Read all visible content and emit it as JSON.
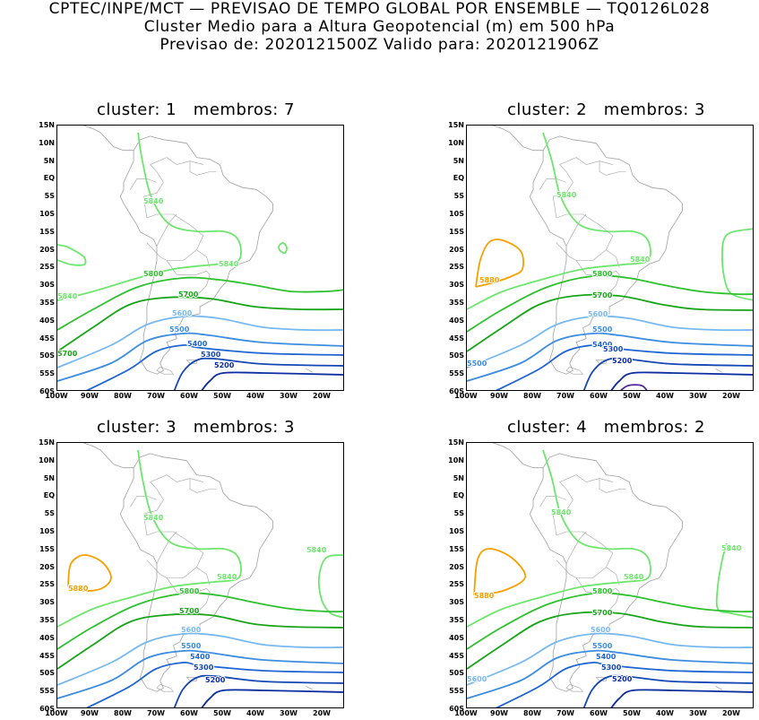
{
  "header": {
    "line1": "CPTEC/INPE/MCT — PREVISAO DE TEMPO GLOBAL POR ENSEMBLE — TQ0126L028",
    "line2": "Cluster Medio para a Altura Geopotencial (m) em 500 hPa",
    "line3": "Previsao de: 2020121500Z    Valido para: 2020121906Z"
  },
  "axes": {
    "lat_labels": [
      "15N",
      "10N",
      "5N",
      "EQ",
      "5S",
      "10S",
      "15S",
      "20S",
      "25S",
      "30S",
      "35S",
      "40S",
      "45S",
      "50S",
      "55S",
      "60S"
    ],
    "lon_labels": [
      "100W",
      "90W",
      "80W",
      "70W",
      "60W",
      "50W",
      "40W",
      "30W",
      "20W"
    ]
  },
  "panels": [
    {
      "title": "cluster: 1   membros: 7",
      "labels": [
        "5840",
        "5840",
        "5840",
        "5800",
        "5700",
        "5700",
        "5600",
        "5500",
        "5400",
        "5300",
        "5200"
      ]
    },
    {
      "title": "cluster: 2   membros: 3",
      "labels": [
        "5840",
        "5840",
        "5880",
        "5800",
        "5700",
        "5600",
        "5500",
        "5400",
        "5300",
        "5200",
        "5500"
      ]
    },
    {
      "title": "cluster: 3   membros: 3",
      "labels": [
        "5840",
        "5840",
        "5840",
        "5880",
        "5800",
        "5700",
        "5600",
        "5500",
        "5400",
        "5300",
        "5200"
      ]
    },
    {
      "title": "cluster: 4   membros: 2",
      "labels": [
        "5840",
        "5840",
        "5840",
        "5880",
        "5800",
        "5700",
        "5600",
        "5500",
        "5400",
        "5300",
        "5200",
        "5600"
      ]
    }
  ],
  "colors": {
    "c5880": "#f5a000",
    "c5840": "#6ee66e",
    "c5800": "#2ec02e",
    "c5700": "#18a418",
    "c5600": "#78b8f0",
    "c5500": "#3c8ce0",
    "c5400": "#1e64d2",
    "c5300": "#1446b4",
    "c5200": "#0c2ca0",
    "c5100": "#5028a0",
    "coast": "#a0a0a0"
  }
}
